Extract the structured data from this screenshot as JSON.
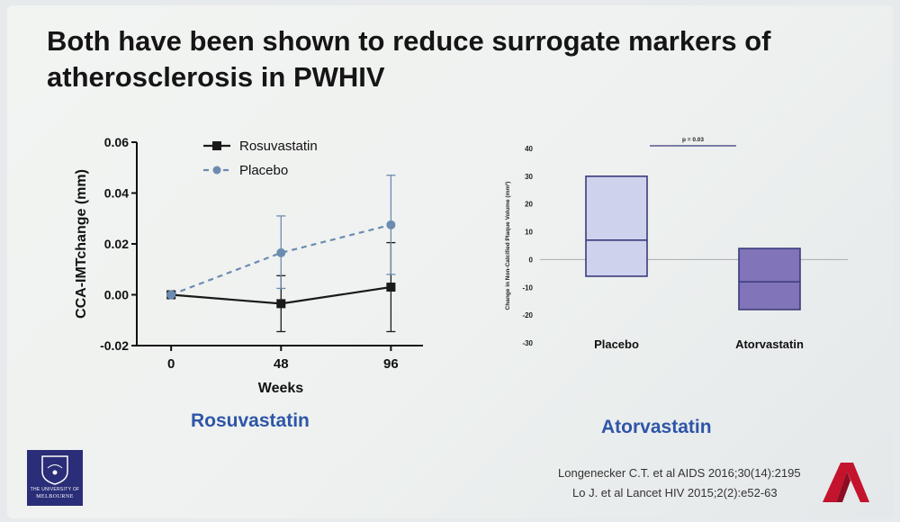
{
  "slide": {
    "title": "Both have been shown to reduce surrogate markers of atherosclerosis in PWHIV",
    "caption_left": "Rosuvastatin",
    "caption_right": "Atorvastatin",
    "reference_1": "Longenecker C.T. et al AIDS 2016;30(14):2195",
    "reference_2": "Lo J. et al Lancet HIV 2015;2(2):e52-63",
    "logo_line1": "THE UNIVERSITY OF",
    "logo_line2": "MELBOURNE",
    "colors": {
      "caption": "#2e55a8",
      "logo": "#2a2d77",
      "placebo_line": "#6c8bb0",
      "box_placebo": "#cfd2ec",
      "box_atorva": "#8274b9",
      "brand": "#c4132d"
    }
  },
  "chart_data": [
    {
      "type": "line",
      "xlabel": "Weeks",
      "ylabel": "CCA-IMTchange (mm)",
      "x": [
        0,
        48,
        96
      ],
      "x_ticks": [
        "0",
        "48",
        "96"
      ],
      "y_ticks": [
        "0.06",
        "0.04",
        "0.02",
        "0.00",
        "-0.02"
      ],
      "ylim": [
        -0.02,
        0.06
      ],
      "legend_position": "top",
      "series": [
        {
          "name": "Rosuvastatin",
          "style": "solid",
          "marker": "square",
          "color": "#1a1a1a",
          "values": [
            0.0,
            -0.0035,
            0.003
          ],
          "err_low": [
            0.0,
            -0.0145,
            -0.0145
          ],
          "err_high": [
            0.0,
            0.0075,
            0.0205
          ]
        },
        {
          "name": "Placebo",
          "style": "dashed",
          "marker": "circle",
          "color": "#6c8bb0",
          "values": [
            0.0,
            0.0165,
            0.0275
          ],
          "err_low": [
            0.0,
            0.0025,
            0.008
          ],
          "err_high": [
            0.0,
            0.031,
            0.047
          ]
        }
      ]
    },
    {
      "type": "box",
      "ylabel": "Change in Non-Calcified Plaque Volume (mm³)",
      "categories": [
        "Placebo",
        "Atorvastatin"
      ],
      "y_ticks": [
        "40",
        "30",
        "20",
        "10",
        "0",
        "-10",
        "-20",
        "-30"
      ],
      "ylim": [
        -30,
        40
      ],
      "boxes": [
        {
          "q1": -6,
          "median": 7,
          "q3": 30
        },
        {
          "q1": -18,
          "median": -8,
          "q3": 4
        }
      ],
      "annotation": "p = 0.03",
      "zero_line": true
    }
  ]
}
